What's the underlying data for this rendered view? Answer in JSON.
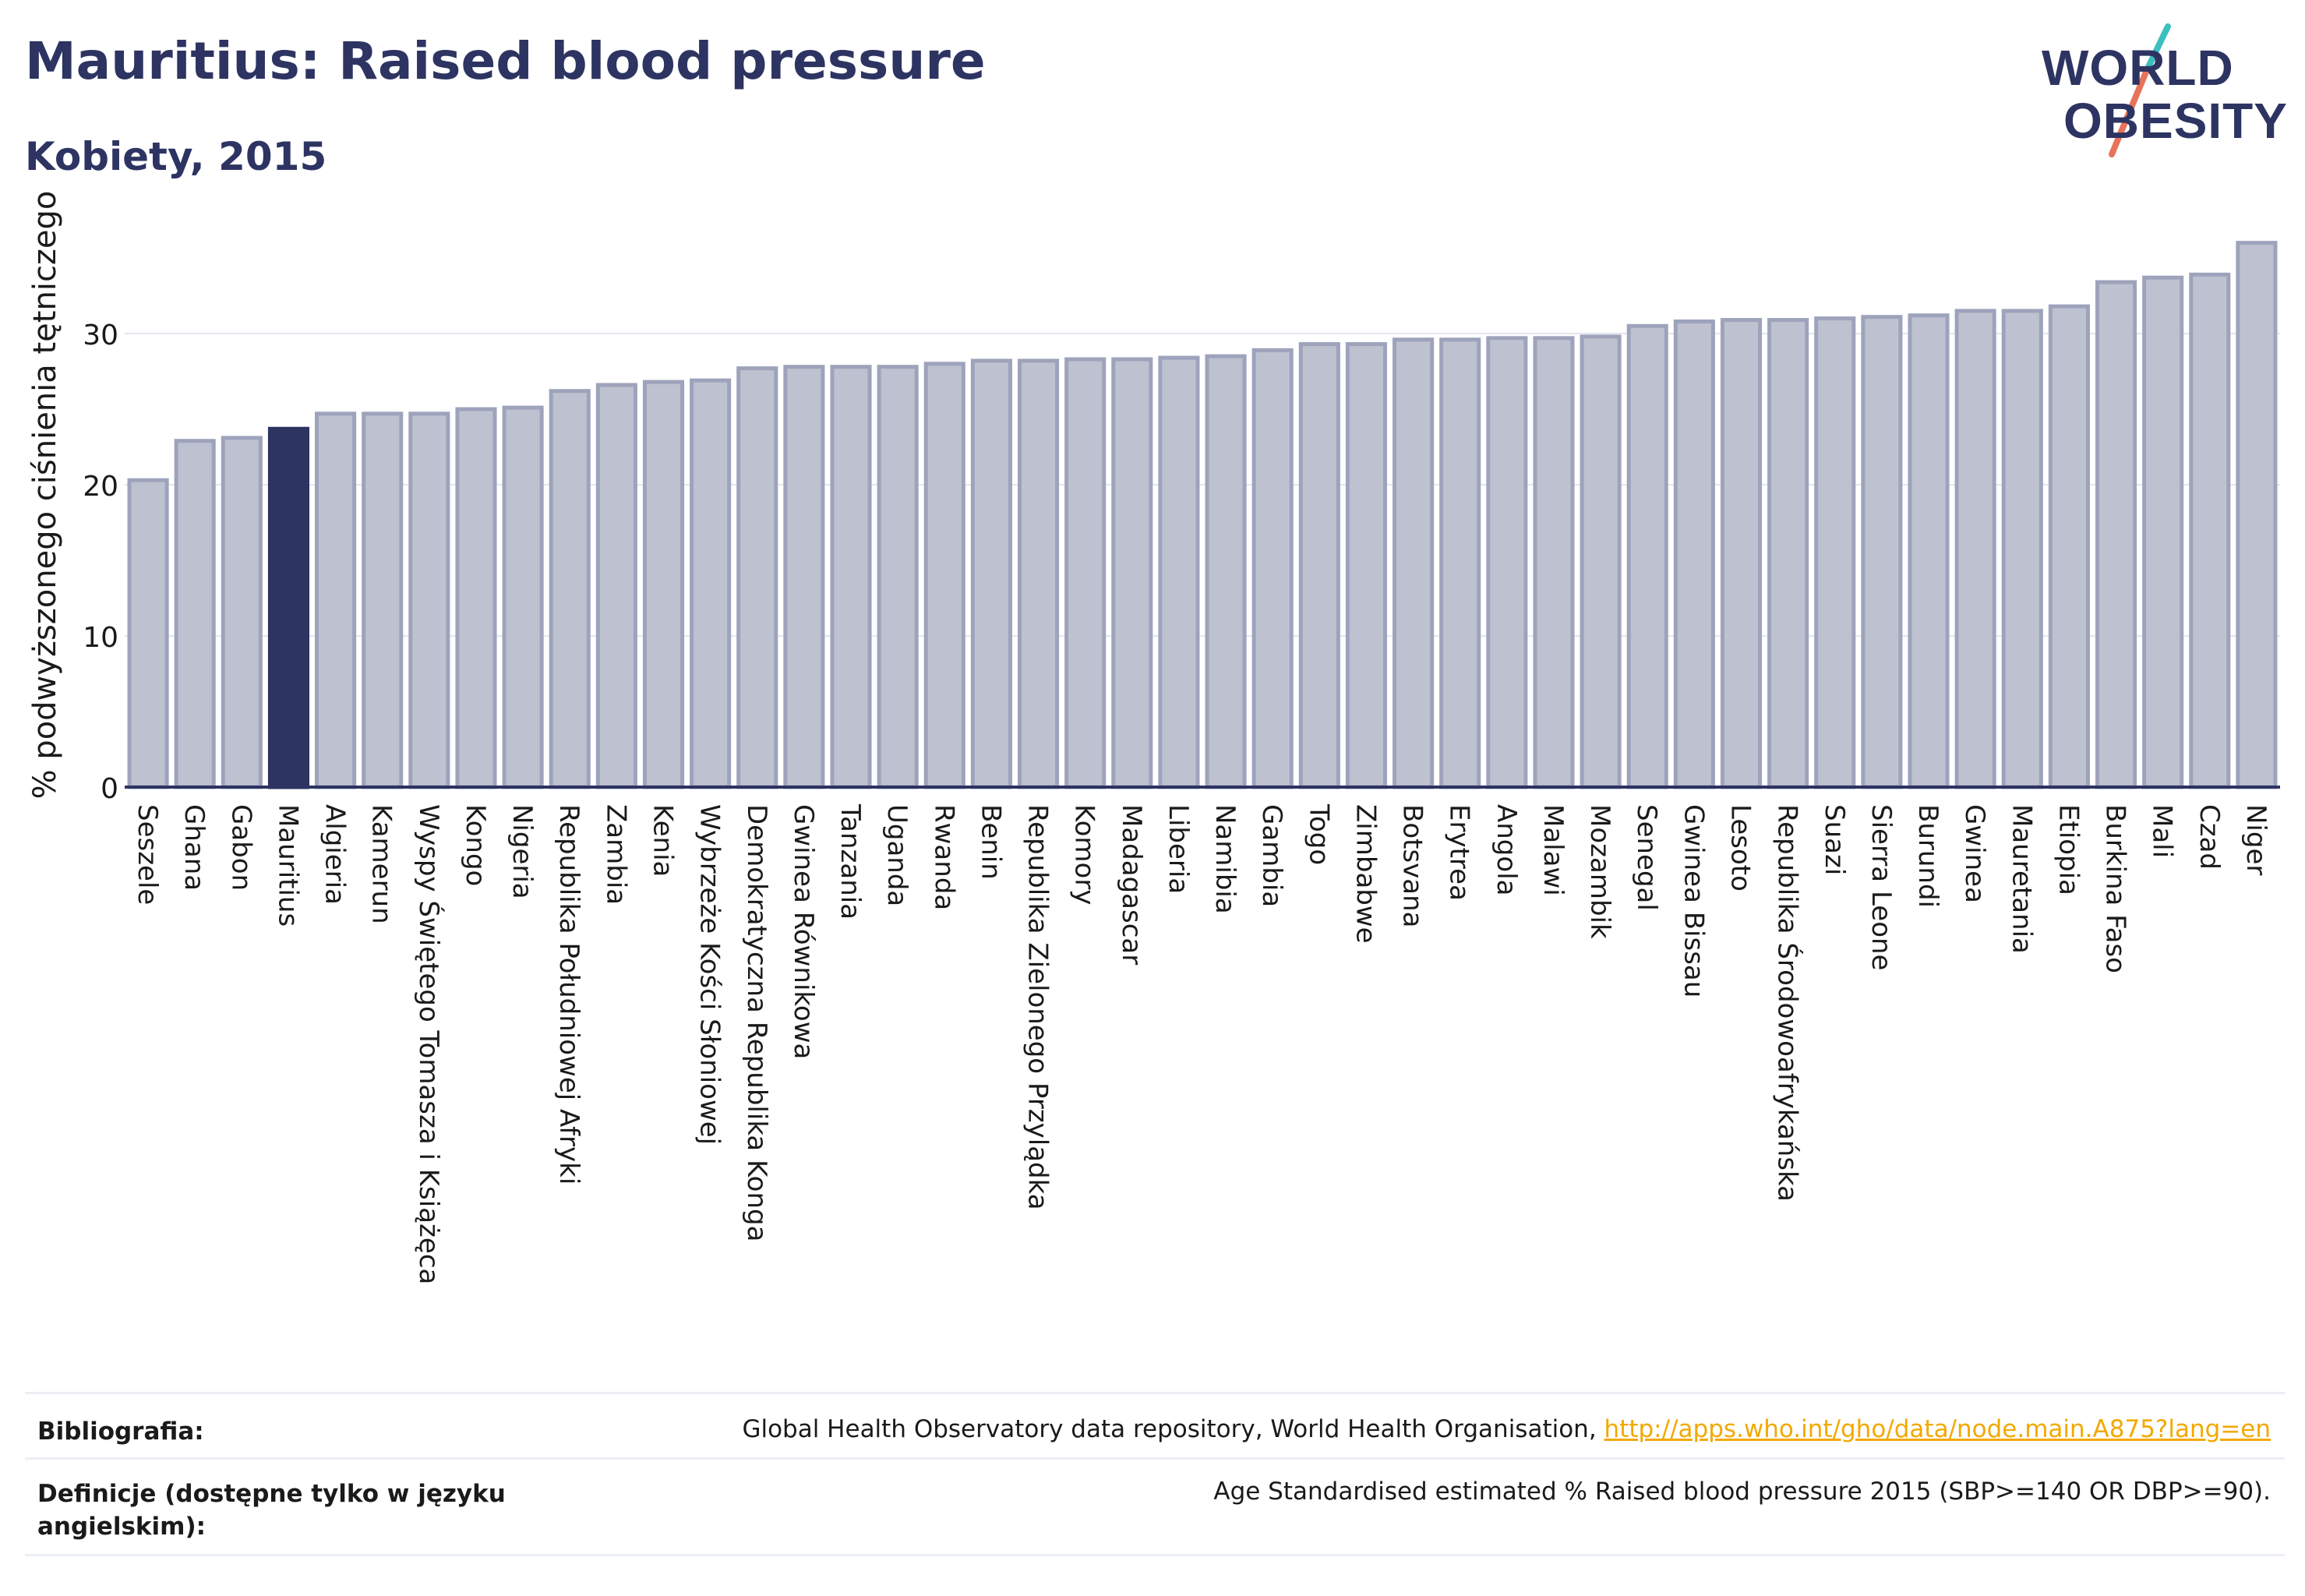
{
  "title": "Mauritius: Raised blood pressure",
  "subtitle": "Kobiety, 2015",
  "logo": {
    "line1": "WORLD",
    "line2": "OBESITY",
    "accent_colors": [
      "#3dbfbf",
      "#e8735a"
    ]
  },
  "footer": {
    "bibliography_label": "Bibliografia:",
    "bibliography_text": "Global Health Observatory data repository, World Health Organisation, ",
    "bibliography_link": "http://apps.who.int/gho/data/node.main.A875?lang=en",
    "definitions_label": "Definicje (dostępne tylko w języku angielskim):",
    "definitions_text": "Age Standardised estimated % Raised blood pressure 2015 (SBP>=140 OR DBP>=90)."
  },
  "colors": {
    "bar": "#bec1cf",
    "bar_border": "#9ea3bc",
    "highlight": "#2d3462",
    "grid": "#e4e6ee",
    "text": "#2d3462"
  },
  "chart_data": {
    "type": "bar",
    "ylabel": "% podwyższonego ciśnienia tętniczego",
    "ylim": [
      0,
      37
    ],
    "yticks": [
      0,
      10,
      20,
      30
    ],
    "grid": true,
    "highlight": "Mauritius",
    "categories": [
      "Seszele",
      "Ghana",
      "Gabon",
      "Mauritius",
      "Algieria",
      "Kamerun",
      "Wyspy Świętego Tomasza i Książęca",
      "Kongo",
      "Nigeria",
      "Republika Południowej Afryki",
      "Zambia",
      "Kenia",
      "Wybrzeże Kości Słoniowej",
      "Demokratyczna Republika Konga",
      "Gwinea Równikowa",
      "Tanzania",
      "Uganda",
      "Rwanda",
      "Benin",
      "Republika Zielonego Przylądka",
      "Komory",
      "Madagascar",
      "Liberia",
      "Namibia",
      "Gambia",
      "Togo",
      "Zimbabwe",
      "Botsvana",
      "Erytrea",
      "Angola",
      "Malawi",
      "Mozambik",
      "Senegal",
      "Gwinea Bissau",
      "Lesoto",
      "Republika Środowoafrykańska",
      "Suazi",
      "Sierra Leone",
      "Burundi",
      "Gwinea",
      "Mauretania",
      "Etiopia",
      "Burkina Faso",
      "Mali",
      "Czad",
      "Niger"
    ],
    "values": [
      20.3,
      22.9,
      23.1,
      23.7,
      24.7,
      24.7,
      24.7,
      25.0,
      25.1,
      26.2,
      26.6,
      26.8,
      26.9,
      27.7,
      27.8,
      27.8,
      27.8,
      28.0,
      28.2,
      28.2,
      28.3,
      28.3,
      28.4,
      28.5,
      28.9,
      29.3,
      29.3,
      29.6,
      29.6,
      29.7,
      29.7,
      29.8,
      30.5,
      30.8,
      30.9,
      30.9,
      31.0,
      31.1,
      31.2,
      31.5,
      31.5,
      31.8,
      33.4,
      33.7,
      33.9,
      36.0
    ]
  }
}
